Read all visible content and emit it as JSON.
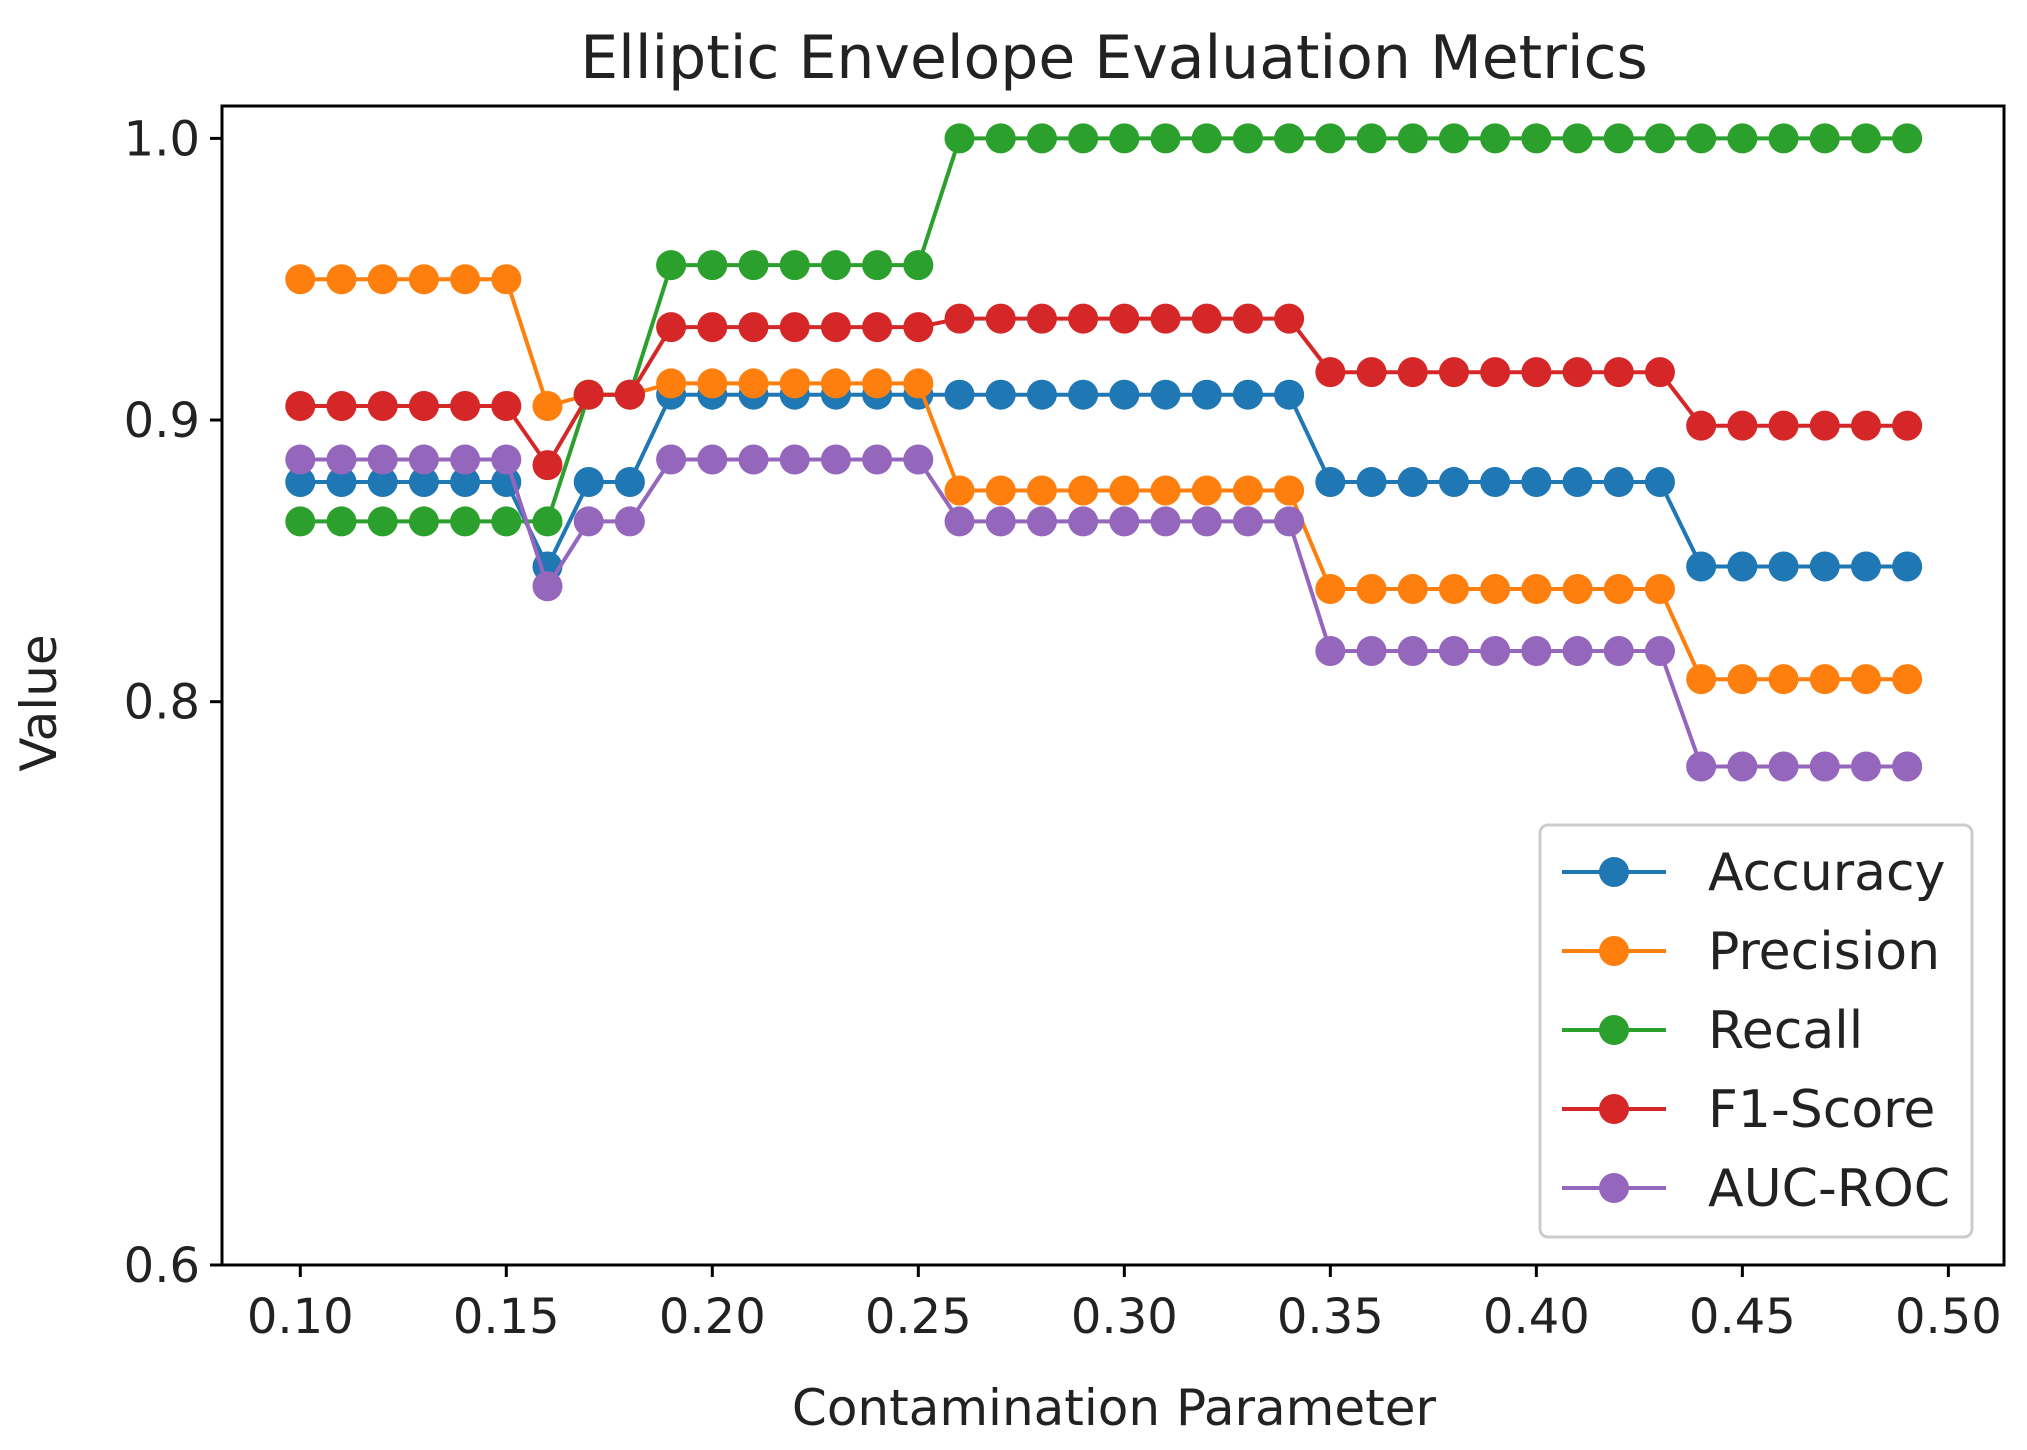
{
  "chart_data": {
    "type": "line",
    "title": "Elliptic Envelope Evaluation Metrics",
    "xlabel": "Contamination Parameter",
    "ylabel": "Value",
    "xlim": [
      0.081,
      0.5135
    ],
    "ylim": [
      0.6,
      1.0115
    ],
    "xticks": [
      0.1,
      0.15,
      0.2,
      0.25,
      0.3,
      0.35,
      0.4,
      0.45,
      0.5
    ],
    "xtick_labels": [
      "0.10",
      "0.15",
      "0.20",
      "0.25",
      "0.30",
      "0.35",
      "0.40",
      "0.45",
      "0.50"
    ],
    "yticks": [
      0.6,
      0.8,
      0.9,
      1.0
    ],
    "ytick_labels": [
      "0.6",
      "0.8",
      "0.9",
      "1.0"
    ],
    "grid": false,
    "legend_position": "lower-right",
    "x": [
      0.1,
      0.11,
      0.12,
      0.13,
      0.14,
      0.15,
      0.16,
      0.17,
      0.18,
      0.19,
      0.2,
      0.21,
      0.22,
      0.23,
      0.24,
      0.25,
      0.26,
      0.27,
      0.28,
      0.29,
      0.3,
      0.31,
      0.32,
      0.33,
      0.34,
      0.35,
      0.36,
      0.37,
      0.38,
      0.39,
      0.4,
      0.41,
      0.42,
      0.43,
      0.44,
      0.45,
      0.46,
      0.47,
      0.48,
      0.49
    ],
    "series": [
      {
        "name": "Accuracy",
        "color": "#1f77b4",
        "values": [
          0.878,
          0.878,
          0.878,
          0.878,
          0.878,
          0.878,
          0.848,
          0.878,
          0.878,
          0.909,
          0.909,
          0.909,
          0.909,
          0.909,
          0.909,
          0.909,
          0.909,
          0.909,
          0.909,
          0.909,
          0.909,
          0.909,
          0.909,
          0.909,
          0.909,
          0.878,
          0.878,
          0.878,
          0.878,
          0.878,
          0.878,
          0.878,
          0.878,
          0.878,
          0.848,
          0.848,
          0.848,
          0.848,
          0.848,
          0.848
        ]
      },
      {
        "name": "Precision",
        "color": "#ff7f0e",
        "values": [
          0.95,
          0.95,
          0.95,
          0.95,
          0.95,
          0.95,
          0.905,
          0.909,
          0.909,
          0.913,
          0.913,
          0.913,
          0.913,
          0.913,
          0.913,
          0.913,
          0.875,
          0.875,
          0.875,
          0.875,
          0.875,
          0.875,
          0.875,
          0.875,
          0.875,
          0.84,
          0.84,
          0.84,
          0.84,
          0.84,
          0.84,
          0.84,
          0.84,
          0.84,
          0.808,
          0.808,
          0.808,
          0.808,
          0.808,
          0.808
        ]
      },
      {
        "name": "Recall",
        "color": "#2ca02c",
        "values": [
          0.864,
          0.864,
          0.864,
          0.864,
          0.864,
          0.864,
          0.864,
          0.909,
          0.909,
          0.955,
          0.955,
          0.955,
          0.955,
          0.955,
          0.955,
          0.955,
          1.0,
          1.0,
          1.0,
          1.0,
          1.0,
          1.0,
          1.0,
          1.0,
          1.0,
          1.0,
          1.0,
          1.0,
          1.0,
          1.0,
          1.0,
          1.0,
          1.0,
          1.0,
          1.0,
          1.0,
          1.0,
          1.0,
          1.0,
          1.0
        ]
      },
      {
        "name": "F1-Score",
        "color": "#d62728",
        "values": [
          0.905,
          0.905,
          0.905,
          0.905,
          0.905,
          0.905,
          0.884,
          0.909,
          0.909,
          0.933,
          0.933,
          0.933,
          0.933,
          0.933,
          0.933,
          0.933,
          0.936,
          0.936,
          0.936,
          0.936,
          0.936,
          0.936,
          0.936,
          0.936,
          0.936,
          0.917,
          0.917,
          0.917,
          0.917,
          0.917,
          0.917,
          0.917,
          0.917,
          0.917,
          0.898,
          0.898,
          0.898,
          0.898,
          0.898,
          0.898
        ]
      },
      {
        "name": "AUC-ROC",
        "color": "#9467bd",
        "values": [
          0.886,
          0.886,
          0.886,
          0.886,
          0.886,
          0.886,
          0.841,
          0.864,
          0.864,
          0.886,
          0.886,
          0.886,
          0.886,
          0.886,
          0.886,
          0.886,
          0.864,
          0.864,
          0.864,
          0.864,
          0.864,
          0.864,
          0.864,
          0.864,
          0.864,
          0.818,
          0.818,
          0.818,
          0.818,
          0.818,
          0.818,
          0.818,
          0.818,
          0.818,
          0.777,
          0.777,
          0.777,
          0.777,
          0.777,
          0.777
        ]
      }
    ]
  }
}
